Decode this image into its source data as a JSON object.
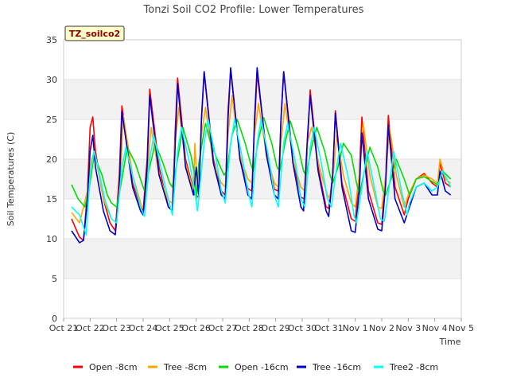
{
  "chart_data": {
    "type": "line",
    "title": "Tonzi Soil CO2 Profile: Lower Temperatures",
    "badge": "TZ_soilco2",
    "xlabel": "Time",
    "ylabel": "Soil Temperatures (C)",
    "x_ticks": [
      "Oct 21",
      "Oct 22",
      "Oct 23",
      "Oct 24",
      "Oct 25",
      "Oct 26",
      "Oct 27",
      "Oct 28",
      "Oct 29",
      "Oct 30",
      "Oct 31",
      "Nov 1",
      "Nov 2",
      "Nov 3",
      "Nov 4",
      "Nov 5"
    ],
    "x_range_days": [
      0,
      15
    ],
    "ylim": [
      0,
      35
    ],
    "y_ticks": [
      0,
      5,
      10,
      15,
      20,
      25,
      30,
      35
    ],
    "grid": "horizontal bands",
    "legend_position": "bottom",
    "series": [
      {
        "name": "Open -8cm",
        "color": "#ff0000",
        "x": [
          0.3,
          0.6,
          0.75,
          0.9,
          1.0,
          1.1,
          1.2,
          1.5,
          1.75,
          1.95,
          2.1,
          2.2,
          2.6,
          2.9,
          3.0,
          3.15,
          3.25,
          3.6,
          3.95,
          4.1,
          4.2,
          4.3,
          4.6,
          4.95,
          5.1,
          5.2,
          5.3,
          5.65,
          5.95,
          6.1,
          6.2,
          6.3,
          6.65,
          6.95,
          7.1,
          7.2,
          7.3,
          7.65,
          7.95,
          8.1,
          8.2,
          8.3,
          8.65,
          8.95,
          9.1,
          9.2,
          9.3,
          9.6,
          9.9,
          10.0,
          10.15,
          10.25,
          10.5,
          10.85,
          11.0,
          11.15,
          11.25,
          11.5,
          11.85,
          12.0,
          12.15,
          12.25,
          12.5,
          12.85,
          13.0,
          13.3,
          13.6,
          13.9,
          14.1,
          14.2,
          14.4,
          14.6
        ],
        "y": [
          12.5,
          10.2,
          9.8,
          16.0,
          24.0,
          25.3,
          21.0,
          15.0,
          12.0,
          11.0,
          18.0,
          26.7,
          17.0,
          14.0,
          13.5,
          20.0,
          28.8,
          19.0,
          14.0,
          13.5,
          23.0,
          30.2,
          20.0,
          15.5,
          15.2,
          25.0,
          31.0,
          20.0,
          16.0,
          15.5,
          26.0,
          31.2,
          20.0,
          16.3,
          16.0,
          24.0,
          30.8,
          21.0,
          16.2,
          16.0,
          25.0,
          31.0,
          20.0,
          15.2,
          15.0,
          22.0,
          28.7,
          19.0,
          14.0,
          13.8,
          18.0,
          26.1,
          17.0,
          12.5,
          12.2,
          18.0,
          25.3,
          16.0,
          12.0,
          11.8,
          18.0,
          25.5,
          16.5,
          13.0,
          15.0,
          17.5,
          18.2,
          17.0,
          16.5,
          19.5,
          17.0,
          16.5
        ]
      },
      {
        "name": "Tree -8cm",
        "color": "#ffa500",
        "x": [
          0.3,
          0.6,
          0.9,
          1.0,
          1.1,
          1.25,
          1.5,
          1.8,
          2.0,
          2.15,
          2.25,
          2.6,
          2.95,
          3.05,
          3.2,
          3.3,
          3.6,
          3.95,
          4.1,
          4.2,
          4.35,
          4.6,
          4.9,
          4.95,
          5.0,
          5.1,
          5.2,
          5.35,
          5.65,
          5.95,
          6.1,
          6.2,
          6.35,
          6.65,
          6.95,
          7.1,
          7.2,
          7.35,
          7.65,
          7.95,
          8.1,
          8.2,
          8.35,
          8.65,
          8.95,
          9.1,
          9.2,
          9.35,
          9.65,
          9.95,
          10.05,
          10.2,
          10.3,
          10.55,
          10.85,
          11.0,
          11.15,
          11.3,
          11.55,
          11.85,
          12.0,
          12.15,
          12.3,
          12.55,
          12.85,
          13.0,
          13.3,
          13.6,
          13.9,
          14.1,
          14.2,
          14.4,
          14.6
        ],
        "y": [
          13.3,
          12.0,
          16.0,
          19.0,
          20.5,
          19.5,
          15.0,
          12.5,
          12.0,
          18.0,
          25.5,
          18.0,
          14.0,
          13.8,
          20.0,
          24.0,
          18.0,
          14.8,
          14.5,
          22.0,
          26.5,
          19.5,
          16.0,
          22.0,
          19.0,
          17.0,
          23.0,
          26.5,
          19.5,
          17.0,
          16.5,
          23.0,
          28.0,
          20.5,
          17.5,
          17.0,
          23.0,
          27.0,
          20.5,
          17.0,
          16.5,
          22.0,
          27.0,
          20.0,
          16.5,
          16.0,
          22.0,
          24.0,
          19.0,
          15.5,
          15.0,
          19.0,
          23.0,
          18.0,
          14.5,
          14.0,
          18.0,
          24.5,
          18.0,
          14.0,
          13.8,
          18.0,
          24.0,
          18.0,
          14.0,
          15.5,
          17.5,
          18.0,
          17.5,
          17.0,
          20.0,
          17.5,
          17.0
        ]
      },
      {
        "name": "Open -16cm",
        "color": "#00dd00",
        "x": [
          0.3,
          0.55,
          0.8,
          0.95,
          1.15,
          1.45,
          1.65,
          1.8,
          2.0,
          2.2,
          2.4,
          2.7,
          2.95,
          3.05,
          3.25,
          3.45,
          3.75,
          4.0,
          4.1,
          4.3,
          4.5,
          4.8,
          4.95,
          5.0,
          5.1,
          5.35,
          5.55,
          5.85,
          6.05,
          6.15,
          6.35,
          6.55,
          6.85,
          7.05,
          7.15,
          7.35,
          7.55,
          7.85,
          8.05,
          8.15,
          8.35,
          8.55,
          8.85,
          9.05,
          9.15,
          9.35,
          9.55,
          9.85,
          10.05,
          10.15,
          10.35,
          10.55,
          10.85,
          11.05,
          11.15,
          11.35,
          11.55,
          11.85,
          12.05,
          12.15,
          12.35,
          12.55,
          12.85,
          13.05,
          13.3,
          13.6,
          13.9,
          14.1,
          14.3,
          14.6
        ],
        "y": [
          16.8,
          15.0,
          14.0,
          16.0,
          20.5,
          18.0,
          15.5,
          14.5,
          14.0,
          17.5,
          21.5,
          19.5,
          17.0,
          16.0,
          19.0,
          22.0,
          19.5,
          17.0,
          16.5,
          20.0,
          24.0,
          20.5,
          18.0,
          14.8,
          19.5,
          24.5,
          22.0,
          19.5,
          18.0,
          18.5,
          23.0,
          25.0,
          22.0,
          19.5,
          18.5,
          22.5,
          25.2,
          22.0,
          19.0,
          18.5,
          22.0,
          24.8,
          21.5,
          18.5,
          18.0,
          21.5,
          24.0,
          21.0,
          18.0,
          17.0,
          19.0,
          22.0,
          20.5,
          17.0,
          15.5,
          18.5,
          21.5,
          19.0,
          16.0,
          15.5,
          17.5,
          20.0,
          17.5,
          15.5,
          17.5,
          17.8,
          17.2,
          16.8,
          18.5,
          17.5
        ]
      },
      {
        "name": "Tree -16cm",
        "color": "#0000cc",
        "x": [
          0.3,
          0.6,
          0.75,
          0.9,
          1.0,
          1.1,
          1.2,
          1.5,
          1.75,
          1.95,
          2.1,
          2.2,
          2.6,
          2.9,
          3.0,
          3.15,
          3.25,
          3.6,
          3.95,
          4.1,
          4.2,
          4.3,
          4.6,
          4.9,
          5.0,
          5.1,
          5.2,
          5.3,
          5.65,
          5.95,
          6.1,
          6.2,
          6.3,
          6.65,
          6.95,
          7.1,
          7.2,
          7.3,
          7.65,
          7.95,
          8.1,
          8.2,
          8.3,
          8.65,
          8.95,
          9.05,
          9.2,
          9.3,
          9.6,
          9.9,
          10.0,
          10.15,
          10.25,
          10.5,
          10.85,
          11.0,
          11.15,
          11.25,
          11.5,
          11.85,
          12.0,
          12.15,
          12.25,
          12.5,
          12.85,
          13.0,
          13.3,
          13.6,
          13.9,
          14.1,
          14.2,
          14.4,
          14.6
        ],
        "y": [
          11.0,
          9.5,
          9.8,
          15.0,
          21.0,
          23.0,
          19.0,
          13.5,
          11.0,
          10.5,
          16.0,
          26.0,
          16.5,
          13.5,
          13.0,
          19.0,
          28.0,
          18.0,
          14.0,
          13.5,
          21.0,
          29.5,
          19.0,
          15.5,
          19.0,
          15.2,
          25.0,
          31.0,
          19.5,
          15.5,
          15.0,
          25.0,
          31.5,
          20.0,
          15.5,
          15.0,
          25.0,
          31.5,
          20.5,
          15.5,
          15.0,
          25.0,
          31.0,
          19.5,
          14.0,
          13.5,
          23.0,
          28.0,
          18.5,
          13.5,
          12.8,
          18.0,
          25.8,
          16.5,
          11.0,
          10.8,
          16.0,
          23.3,
          15.0,
          11.2,
          11.0,
          17.0,
          24.3,
          15.0,
          12.0,
          13.5,
          16.5,
          17.0,
          15.5,
          15.5,
          18.5,
          16.0,
          15.5
        ]
      },
      {
        "name": "Tree2 -8cm",
        "color": "#00ffff",
        "x": [
          0.3,
          0.6,
          0.85,
          1.0,
          1.15,
          1.3,
          1.55,
          1.8,
          2.0,
          2.2,
          2.35,
          2.6,
          2.9,
          3.05,
          3.25,
          3.4,
          3.7,
          3.95,
          4.1,
          4.3,
          4.45,
          4.75,
          4.95,
          5.05,
          5.3,
          5.45,
          5.75,
          5.95,
          6.1,
          6.3,
          6.45,
          6.75,
          6.95,
          7.1,
          7.3,
          7.45,
          7.75,
          7.95,
          8.1,
          8.3,
          8.45,
          8.75,
          8.95,
          9.1,
          9.3,
          9.45,
          9.75,
          9.95,
          10.1,
          10.3,
          10.45,
          10.75,
          10.95,
          11.05,
          11.3,
          11.45,
          11.75,
          11.95,
          12.1,
          12.3,
          12.45,
          12.75,
          12.95,
          13.05,
          13.3,
          13.6,
          13.9,
          14.1,
          14.3,
          14.6
        ],
        "y": [
          14.0,
          13.0,
          10.5,
          18.0,
          21.0,
          19.0,
          15.0,
          12.5,
          12.0,
          19.0,
          21.5,
          18.0,
          14.0,
          12.8,
          20.0,
          23.0,
          18.5,
          15.0,
          13.0,
          21.0,
          24.0,
          19.5,
          16.0,
          13.5,
          22.0,
          25.0,
          20.0,
          16.0,
          14.5,
          22.0,
          25.0,
          20.0,
          16.0,
          14.0,
          22.0,
          25.0,
          20.0,
          15.5,
          14.0,
          22.0,
          24.5,
          19.5,
          15.0,
          14.0,
          21.5,
          24.0,
          19.0,
          15.0,
          14.0,
          19.0,
          22.0,
          17.5,
          13.0,
          12.0,
          17.5,
          21.0,
          16.0,
          12.5,
          12.2,
          17.0,
          21.0,
          16.0,
          13.0,
          14.5,
          16.5,
          17.0,
          16.0,
          16.5,
          18.5,
          16.5
        ]
      }
    ]
  }
}
